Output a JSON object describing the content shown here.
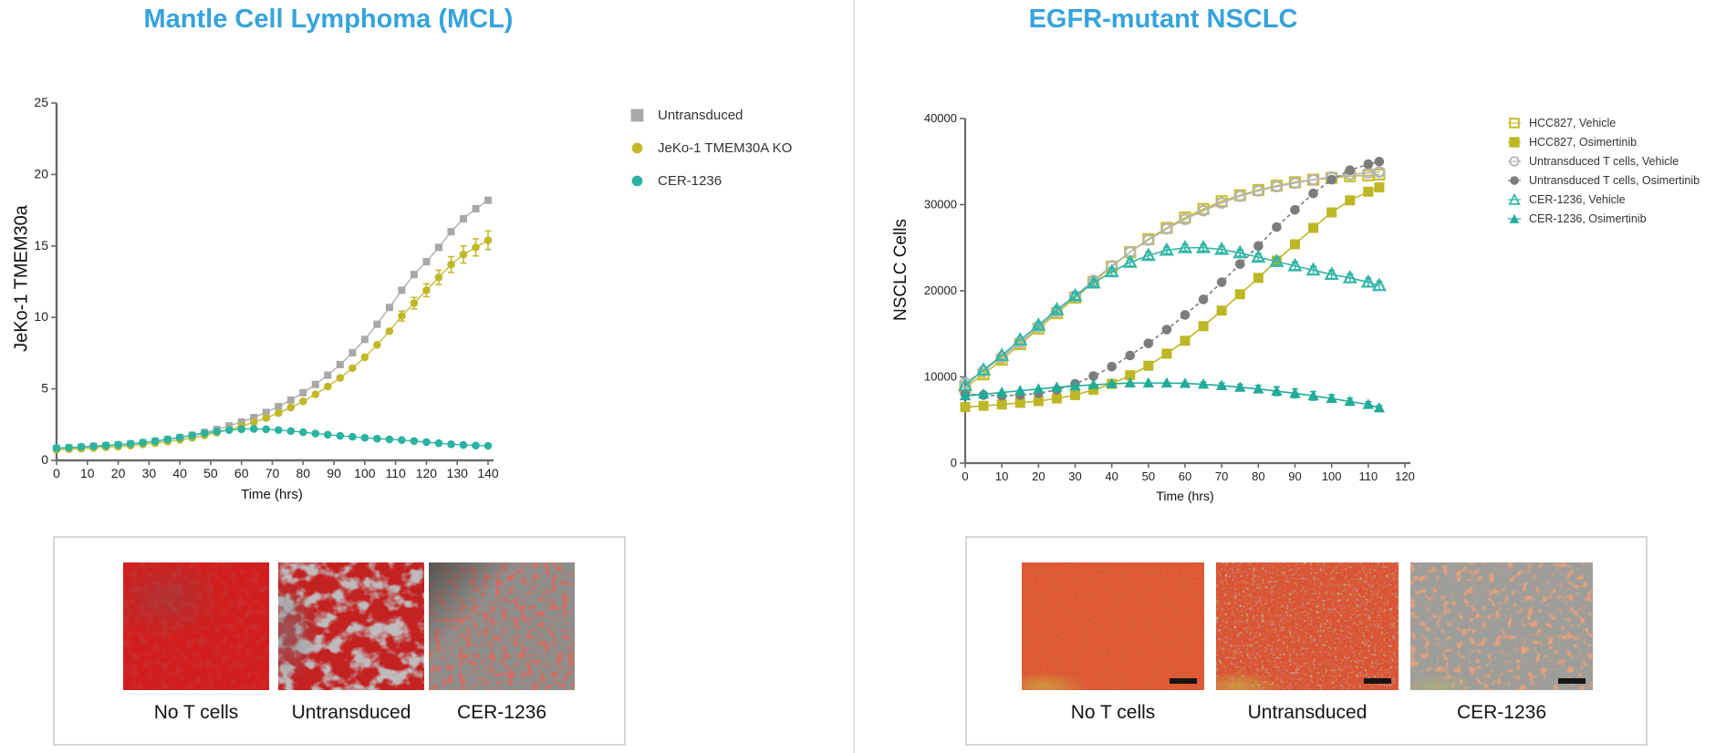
{
  "panels": {
    "mcl": {
      "title": "Mantle Cell Lymphoma (MCL)",
      "title_color": "#36a3dc",
      "images": [
        {
          "label": "No T cells"
        },
        {
          "label": "Untransduced"
        },
        {
          "label": "CER-1236"
        }
      ]
    },
    "nsclc": {
      "title": "EGFR-mutant NSCLC",
      "title_color": "#36a3dc",
      "images": [
        {
          "label": "No T cells"
        },
        {
          "label": "Untransduced"
        },
        {
          "label": "CER-1236"
        }
      ]
    }
  },
  "chart_data": [
    {
      "type": "scatter",
      "panel": "mcl",
      "xlabel": "Time (hrs)",
      "ylabel": "JeKo-1 TMEM30a",
      "xlim": [
        0,
        140
      ],
      "xtick_step": 10,
      "ylim": [
        0,
        25
      ],
      "ytick_step": 5,
      "grid": false,
      "legend_position": "top-right",
      "x": [
        0,
        4,
        8,
        12,
        16,
        20,
        24,
        28,
        32,
        36,
        40,
        44,
        48,
        52,
        56,
        60,
        64,
        68,
        72,
        76,
        80,
        84,
        88,
        92,
        96,
        100,
        104,
        108,
        112,
        116,
        120,
        124,
        128,
        132,
        136,
        140
      ],
      "series": [
        {
          "name": "Untransduced",
          "marker": "square-filled",
          "color": "#a8a8a8",
          "values": [
            0.85,
            0.88,
            0.92,
            0.97,
            1.02,
            1.08,
            1.15,
            1.24,
            1.34,
            1.46,
            1.6,
            1.76,
            1.95,
            2.16,
            2.41,
            2.69,
            3.0,
            3.36,
            3.76,
            4.22,
            4.73,
            5.31,
            5.96,
            6.7,
            7.53,
            8.46,
            9.52,
            10.7,
            11.9,
            13.0,
            13.9,
            14.9,
            16.0,
            16.9,
            17.6,
            18.2
          ]
        },
        {
          "name": "JeKo-1 TMEM30A KO",
          "marker": "circle-filled",
          "color": "#bfb929",
          "values": [
            0.75,
            0.78,
            0.82,
            0.87,
            0.92,
            0.97,
            1.04,
            1.12,
            1.21,
            1.32,
            1.44,
            1.58,
            1.75,
            1.94,
            2.15,
            2.39,
            2.66,
            2.97,
            3.31,
            3.7,
            4.13,
            4.62,
            5.16,
            5.77,
            6.45,
            7.22,
            8.08,
            9.04,
            10.1,
            11.0,
            11.9,
            12.8,
            13.7,
            14.4,
            14.9,
            15.4
          ],
          "errors": [
            0,
            0,
            0,
            0,
            0,
            0,
            0,
            0,
            0,
            0,
            0,
            0,
            0,
            0,
            0,
            0,
            0,
            0,
            0,
            0,
            0,
            0,
            0,
            0,
            0,
            0,
            0,
            0,
            0.35,
            0.4,
            0.45,
            0.5,
            0.55,
            0.6,
            0.6,
            0.65
          ]
        },
        {
          "name": "CER-1236",
          "marker": "circle-filled",
          "color": "#2ab3a0",
          "values": [
            0.85,
            0.9,
            0.95,
            1.0,
            1.05,
            1.1,
            1.17,
            1.25,
            1.35,
            1.47,
            1.6,
            1.75,
            1.9,
            2.02,
            2.12,
            2.18,
            2.2,
            2.18,
            2.12,
            2.05,
            1.97,
            1.88,
            1.8,
            1.72,
            1.65,
            1.58,
            1.52,
            1.47,
            1.42,
            1.35,
            1.28,
            1.2,
            1.13,
            1.08,
            1.04,
            1.02
          ]
        }
      ]
    },
    {
      "type": "scatter",
      "panel": "nsclc",
      "xlabel": "Time (hrs)",
      "ylabel": "NSCLC Cells",
      "xlim": [
        0,
        120
      ],
      "xtick_step": 10,
      "ylim": [
        0,
        40000
      ],
      "ytick_step": 10000,
      "grid": false,
      "legend_position": "top-right",
      "x": [
        0,
        5,
        10,
        15,
        20,
        25,
        30,
        35,
        40,
        45,
        50,
        55,
        60,
        65,
        70,
        75,
        80,
        85,
        90,
        95,
        100,
        105,
        110,
        113
      ],
      "series": [
        {
          "name": "HCC827, Vehicle",
          "marker": "square-open",
          "color": "#c6c033",
          "values": [
            8800,
            10300,
            12000,
            13800,
            15600,
            17400,
            19200,
            21000,
            22800,
            24500,
            26000,
            27300,
            28500,
            29500,
            30400,
            31100,
            31700,
            32200,
            32600,
            32900,
            33100,
            33300,
            33400,
            33500
          ],
          "errors": [
            0,
            350,
            400,
            380,
            350,
            0,
            0,
            0,
            0,
            0,
            0,
            0,
            0,
            0,
            0,
            0,
            0,
            0,
            0,
            0,
            0,
            0,
            0,
            0
          ]
        },
        {
          "name": "HCC827, Osimertinib",
          "marker": "square-filled",
          "color": "#bdb726",
          "values": [
            6500,
            6650,
            6800,
            7000,
            7200,
            7500,
            7900,
            8500,
            9200,
            10200,
            11300,
            12700,
            14200,
            15900,
            17700,
            19600,
            21500,
            23500,
            25400,
            27300,
            29100,
            30500,
            31500,
            32000
          ]
        },
        {
          "name": "Untransduced T cells, Vehicle",
          "marker": "circle-open",
          "color": "#b4b4b4",
          "values": [
            9300,
            10700,
            12300,
            14000,
            15800,
            17600,
            19400,
            21200,
            22900,
            24500,
            25900,
            27200,
            28300,
            29300,
            30200,
            31000,
            31600,
            32100,
            32500,
            32900,
            33200,
            33500,
            33700,
            33800
          ]
        },
        {
          "name": "Untransduced T cells, Osimertinib",
          "marker": "circle-filled",
          "color": "#7c7c7c",
          "dash": true,
          "values": [
            8000,
            7900,
            7800,
            7900,
            8100,
            8500,
            9200,
            10100,
            11200,
            12500,
            13900,
            15500,
            17200,
            19000,
            21000,
            23100,
            25200,
            27400,
            29400,
            31300,
            32900,
            34000,
            34700,
            35000
          ]
        },
        {
          "name": "CER-1236, Vehicle",
          "marker": "triangle-open",
          "color": "#33b6a6",
          "values": [
            9000,
            10800,
            12500,
            14300,
            16000,
            17800,
            19400,
            20900,
            22200,
            23300,
            24100,
            24700,
            25000,
            25000,
            24800,
            24400,
            23900,
            23400,
            22900,
            22400,
            21900,
            21500,
            21000,
            20600
          ],
          "errors": [
            0,
            0,
            0,
            0,
            350,
            380,
            400,
            400,
            420,
            420,
            400,
            380,
            360,
            360,
            360,
            380,
            400,
            420,
            450,
            470,
            480,
            480,
            490,
            500
          ]
        },
        {
          "name": "CER-1236, Osimertinib",
          "marker": "triangle-filled",
          "color": "#22ac99",
          "values": [
            7800,
            8000,
            8200,
            8400,
            8600,
            8800,
            8950,
            9100,
            9200,
            9300,
            9300,
            9300,
            9250,
            9150,
            9000,
            8800,
            8600,
            8350,
            8100,
            7800,
            7500,
            7150,
            6800,
            6400
          ],
          "errors": [
            0,
            0,
            0,
            0,
            0,
            0,
            0,
            0,
            0,
            0,
            0,
            0,
            0,
            250,
            300,
            350,
            420,
            500,
            520,
            500,
            430,
            380,
            320,
            280
          ]
        }
      ]
    }
  ]
}
